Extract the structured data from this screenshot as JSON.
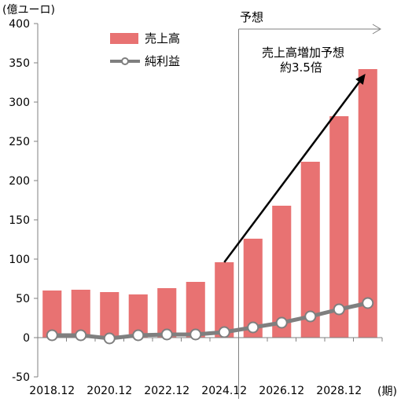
{
  "chart_data": {
    "type": "bar",
    "ylabel": "(億ユーロ)",
    "xlabel": "(期)",
    "ylim": [
      -50,
      400
    ],
    "yticks": [
      -50,
      0,
      50,
      100,
      150,
      200,
      250,
      300,
      350,
      400
    ],
    "xtick_labels": [
      "2018.12",
      "2020.12",
      "2022.12",
      "2024.12",
      "2026.12",
      "2028.12"
    ],
    "categories": [
      "2018.12",
      "2019.12",
      "2020.12",
      "2021.12",
      "2022.12",
      "2023.12",
      "2024.12",
      "2025.12",
      "2026.12",
      "2027.12",
      "2028.12",
      "2029.12"
    ],
    "series": [
      {
        "name": "売上高",
        "kind": "bar",
        "color": "#e87272",
        "values": [
          60,
          61,
          58,
          55,
          63,
          71,
          96,
          126,
          168,
          224,
          282,
          342
        ]
      },
      {
        "name": "純利益",
        "kind": "line",
        "color": "#7f7f7f",
        "values": [
          3,
          3,
          -1,
          3,
          4,
          4,
          7,
          13,
          19,
          27,
          36,
          44
        ]
      }
    ],
    "forecast_label": "予想",
    "forecast_start_category": "2024.12",
    "annotation": {
      "lines": [
        "売上高増加予想",
        "約3.5倍"
      ]
    },
    "grid": false,
    "legend": "top-left"
  }
}
